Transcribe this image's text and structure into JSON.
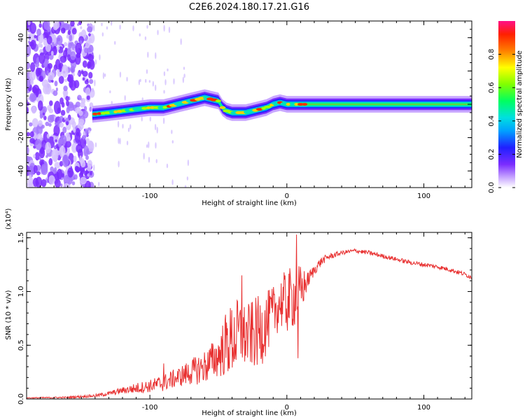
{
  "figure": {
    "title": "C2E6.2024.180.17.21.G16"
  },
  "chart_data": [
    {
      "type": "heatmap",
      "xlabel": "Height of straight line (km)",
      "ylabel": "Frequency (Hz)",
      "xlim": [
        -190,
        135
      ],
      "ylim": [
        -50,
        50
      ],
      "xticks": [
        -100,
        0,
        100
      ],
      "xtick_labels": [
        "-100",
        "0",
        "100"
      ],
      "yticks": [
        -40,
        -20,
        0,
        20,
        40
      ],
      "ytick_labels": [
        "-40",
        "-20",
        "0",
        "20",
        "40"
      ],
      "colorbar": {
        "label": "Normalized spectral amplitude",
        "range": [
          0,
          1
        ],
        "ticks": [
          0.0,
          0.2,
          0.4,
          0.6,
          0.8
        ],
        "tick_labels": [
          "0.0",
          "0.2",
          "0.4",
          "0.6",
          "0.8"
        ]
      },
      "ridge": {
        "x": [
          -142,
          -130,
          -120,
          -110,
          -100,
          -90,
          -80,
          -70,
          -60,
          -55,
          -50,
          -47,
          -44,
          -40,
          -35,
          -30,
          -25,
          -20,
          -15,
          -10,
          -5,
          0,
          5,
          10,
          20,
          40,
          60,
          80,
          100,
          120,
          135
        ],
        "y": [
          -6,
          -5,
          -4,
          -3,
          -2,
          -2,
          0,
          2,
          4,
          3,
          2,
          -2,
          -4,
          -5,
          -5,
          -5,
          -4,
          -3,
          -2,
          0,
          1,
          0,
          0,
          0,
          0,
          0,
          0,
          0,
          0,
          0,
          0
        ]
      },
      "noise_region_x": [
        -190,
        -142
      ]
    },
    {
      "type": "line",
      "xlabel": "Height of straight line (km)",
      "ylabel": "SNR (10 * v/v)",
      "y_multiplier": "(x10⁴)",
      "xlim": [
        -190,
        135
      ],
      "ylim": [
        0,
        1.55
      ],
      "xticks": [
        -100,
        0,
        100
      ],
      "xtick_labels": [
        "-100",
        "0",
        "100"
      ],
      "yticks": [
        0.0,
        0.5,
        1.0,
        1.5
      ],
      "ytick_labels": [
        "0.0",
        "0.5",
        "1.0",
        "1.5"
      ],
      "color": "#e83030",
      "series": [
        {
          "x": [
            -190,
            -160,
            -140,
            -130,
            -120,
            -110,
            -100,
            -90,
            -80,
            -70,
            -60,
            -50,
            -45,
            -40,
            -35,
            -30,
            -25,
            -20,
            -15,
            -10,
            -5,
            0,
            5,
            10,
            15,
            20,
            25,
            30,
            40,
            50,
            60,
            70,
            80,
            90,
            100,
            110,
            120,
            130,
            135
          ],
          "y": [
            0.01,
            0.015,
            0.03,
            0.05,
            0.08,
            0.1,
            0.12,
            0.15,
            0.2,
            0.25,
            0.3,
            0.4,
            0.5,
            0.55,
            0.6,
            0.58,
            0.6,
            0.62,
            0.7,
            0.8,
            0.9,
            0.9,
            0.95,
            1.0,
            1.1,
            1.2,
            1.28,
            1.32,
            1.36,
            1.38,
            1.36,
            1.33,
            1.3,
            1.27,
            1.25,
            1.23,
            1.2,
            1.16,
            1.13
          ],
          "noise": [
            0.004,
            0.008,
            0.015,
            0.02,
            0.03,
            0.05,
            0.06,
            0.08,
            0.09,
            0.12,
            0.16,
            0.2,
            0.3,
            0.35,
            0.35,
            0.3,
            0.32,
            0.35,
            0.3,
            0.25,
            0.25,
            0.3,
            0.3,
            0.25,
            0.08,
            0.05,
            0.04,
            0.03,
            0.02,
            0.02,
            0.02,
            0.02,
            0.02,
            0.02,
            0.02,
            0.02,
            0.02,
            0.02,
            0.02
          ]
        }
      ],
      "peaks": [
        {
          "x": 7,
          "y": 1.53
        },
        {
          "x": 8,
          "y": 0.38
        },
        {
          "x": -90,
          "y": 0.33
        },
        {
          "x": -33,
          "y": 1.15
        }
      ]
    }
  ]
}
